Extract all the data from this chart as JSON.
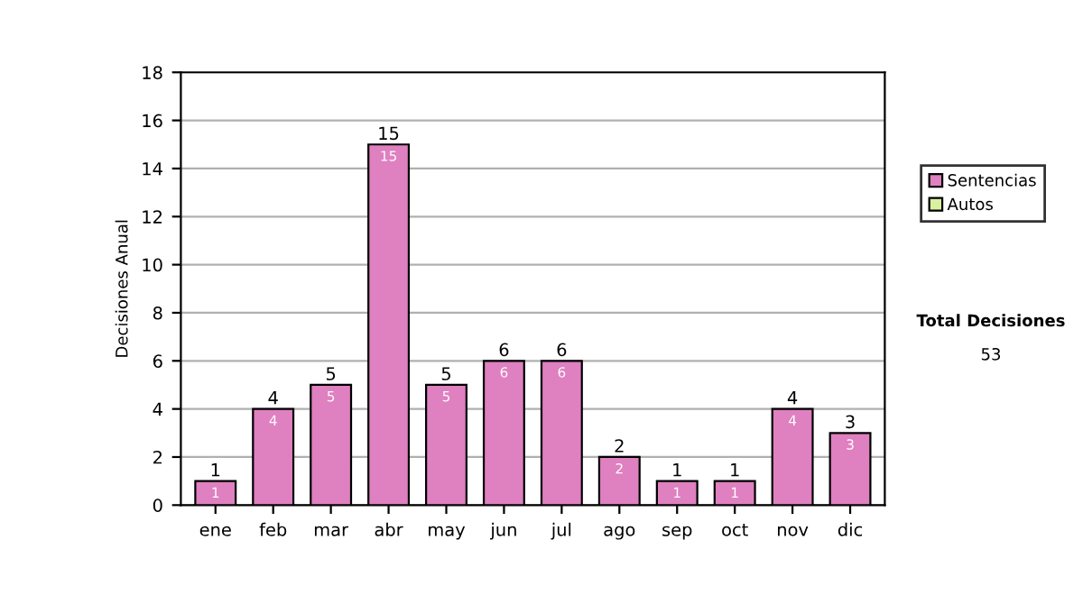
{
  "chart_data": {
    "type": "bar",
    "stacked": true,
    "ylabel": "Decisiones Anual",
    "categories": [
      "ene",
      "feb",
      "mar",
      "abr",
      "may",
      "jun",
      "jul",
      "ago",
      "sep",
      "oct",
      "nov",
      "dic"
    ],
    "series": [
      {
        "name": "Sentencias",
        "color": "#df80c0",
        "values": [
          1,
          4,
          5,
          15,
          5,
          6,
          6,
          2,
          1,
          1,
          4,
          3
        ],
        "value_labels": [
          "1",
          "4",
          "5",
          "15",
          "5",
          "6",
          "6",
          "2",
          "1",
          "1",
          "4",
          "3"
        ]
      },
      {
        "name": "Autos",
        "color": "#d8f0a0",
        "values": [
          null,
          null,
          null,
          null,
          null,
          null,
          null,
          null,
          null,
          null,
          null,
          null
        ]
      }
    ],
    "totals": [
      "1",
      "4",
      "5",
      "15",
      "5",
      "6",
      "6",
      "2",
      "1",
      "1",
      "4",
      "3"
    ],
    "ylim": [
      0,
      18
    ],
    "yticks": [
      0,
      2,
      4,
      6,
      8,
      10,
      12,
      14,
      16,
      18
    ],
    "grid": "y",
    "legend": "right",
    "annotations": [
      "Total Decisiones",
      "53"
    ]
  }
}
